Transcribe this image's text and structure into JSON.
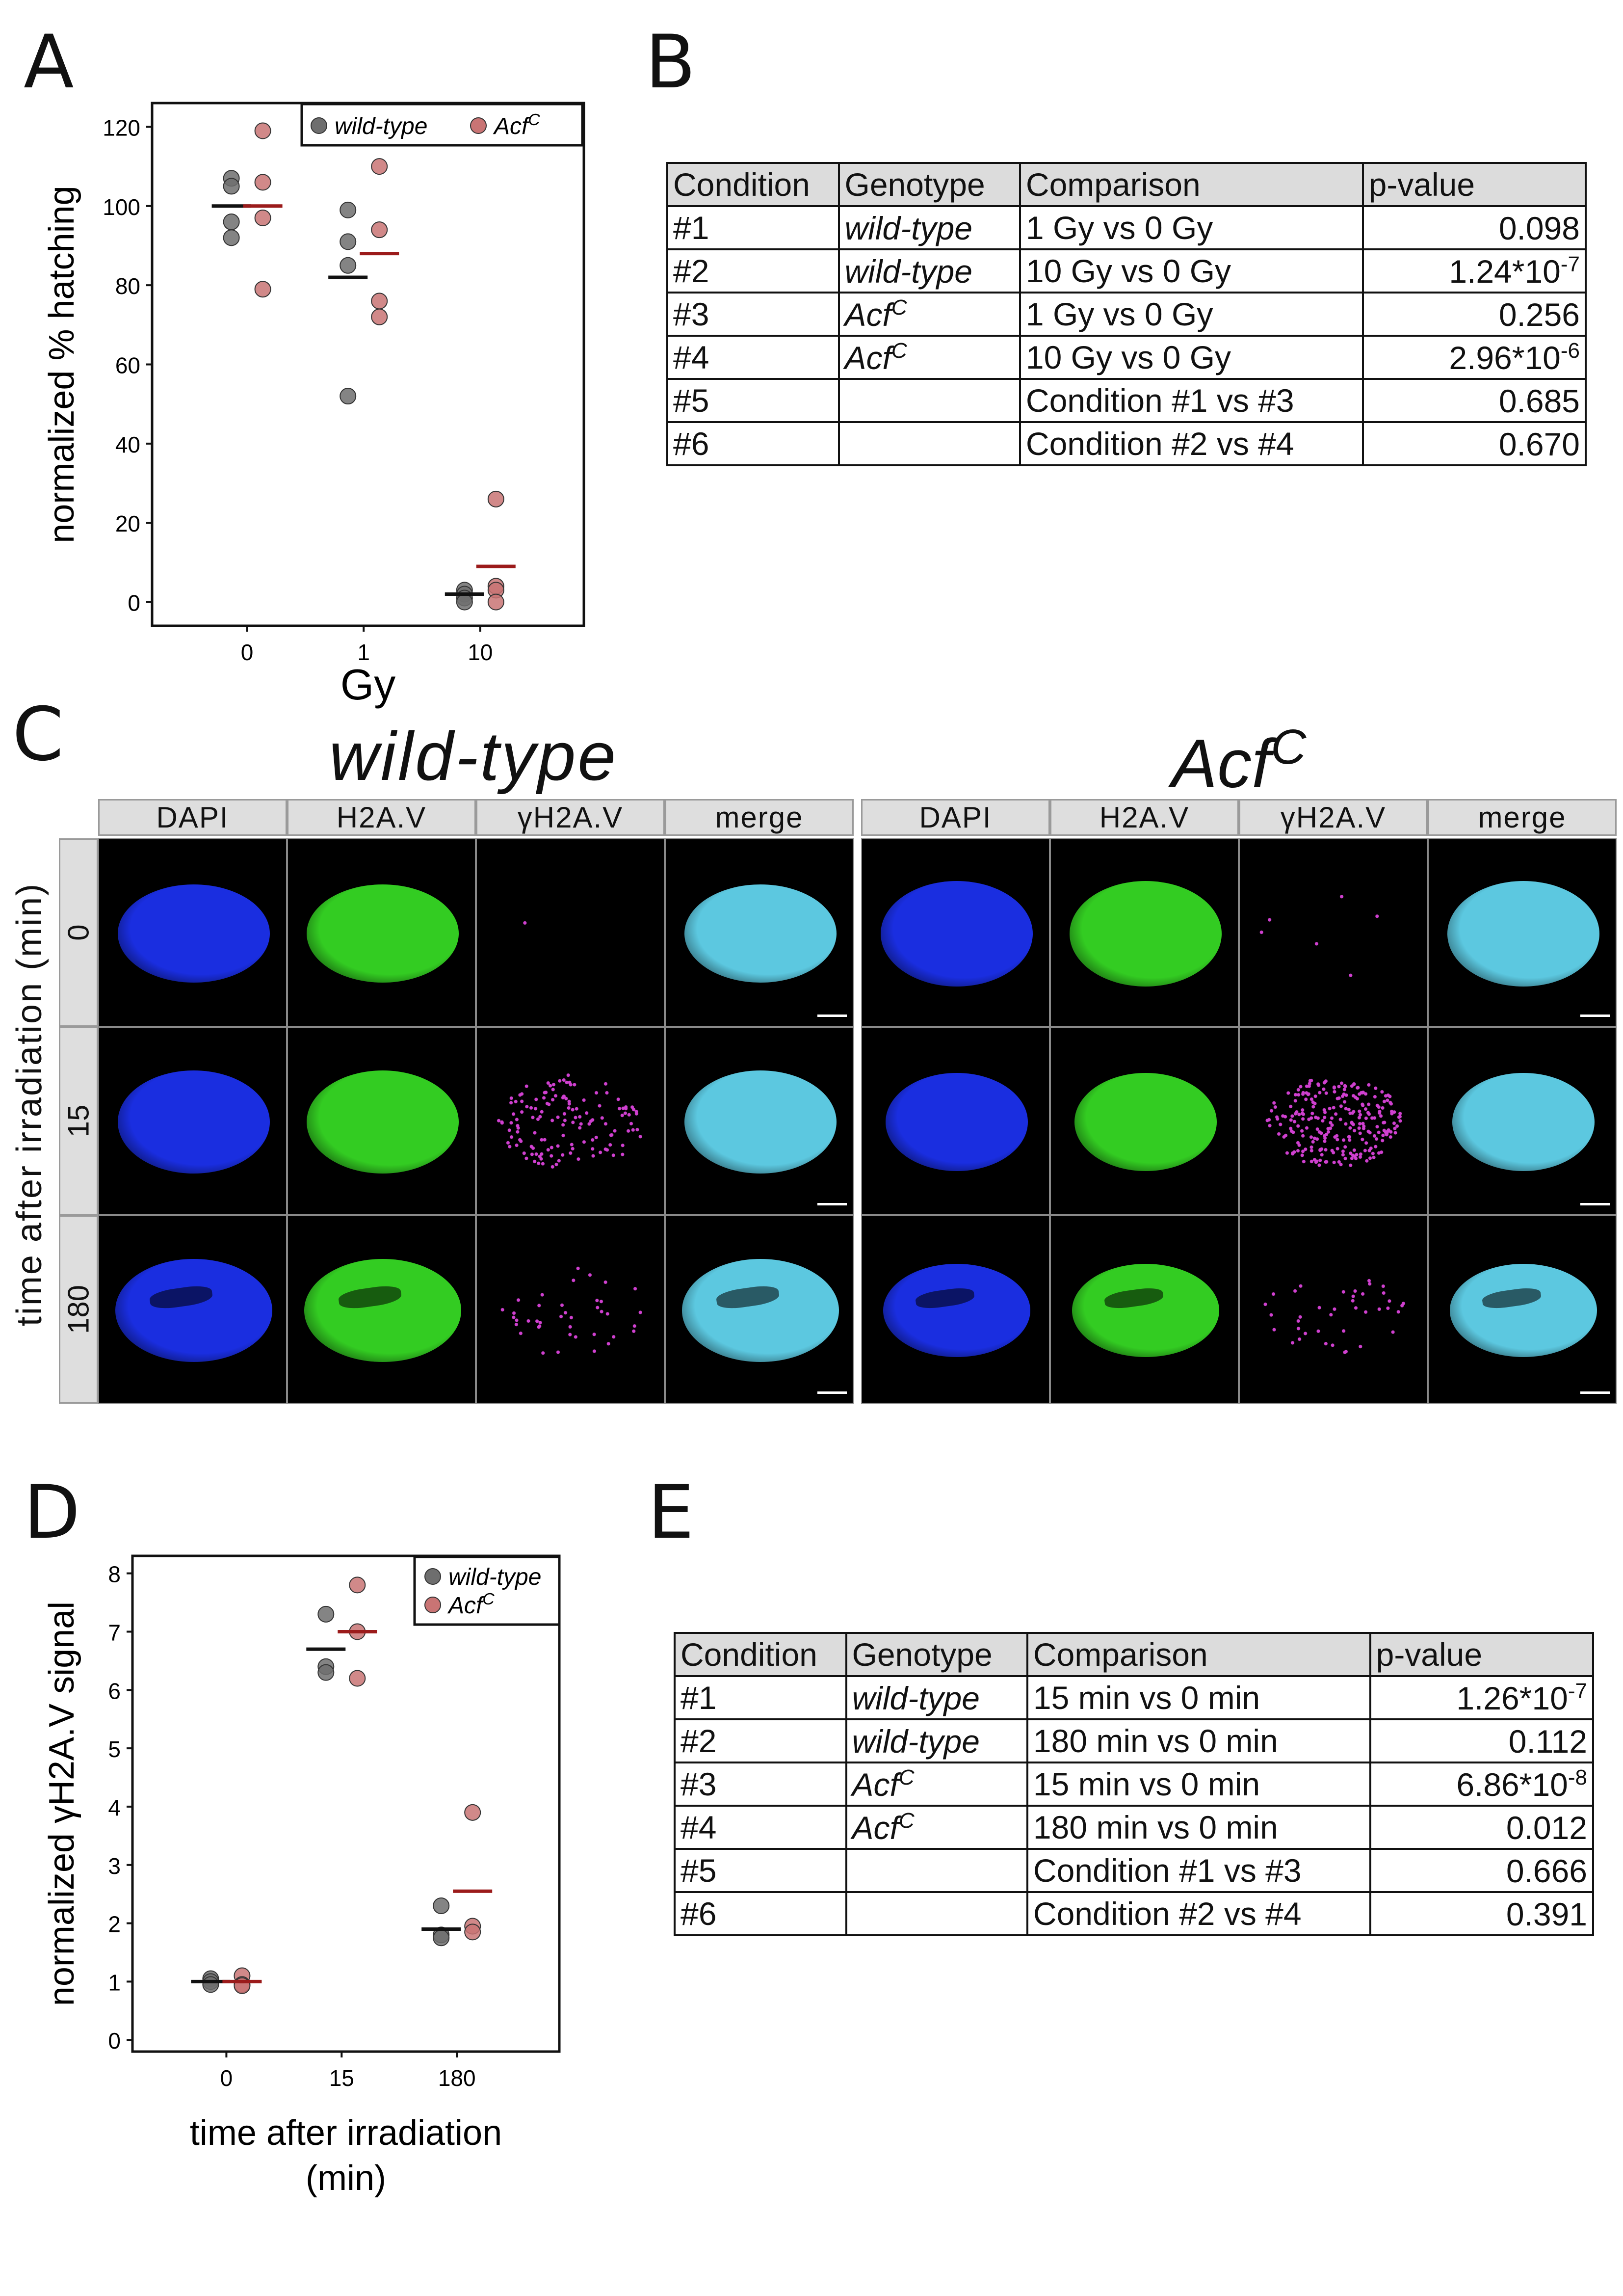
{
  "panels": {
    "a": "A",
    "b": "B",
    "c": "C",
    "d": "D",
    "e": "E"
  },
  "legend": {
    "wt": "wild-type",
    "acf": "Acf",
    "acf_sup": "C"
  },
  "colors": {
    "wt": "#6e6e6e",
    "acf": "#c97474",
    "wt_mean": "#111111",
    "acf_mean": "#9b1b1b",
    "dapi": "#1a2ee0",
    "h2av": "#33cc22",
    "gh2av": "#d040d0",
    "merge": "#5cc8e0"
  },
  "chart_data": [
    {
      "type": "scatter",
      "id": "A",
      "xlabel": "Gy",
      "ylabel": "normalized % hatching",
      "categories": [
        "0",
        "1",
        "10"
      ],
      "ylim": [
        -6,
        126
      ],
      "yticks": [
        0,
        20,
        40,
        60,
        80,
        100,
        120
      ],
      "legend": "top-right",
      "series": [
        {
          "name": "wild-type",
          "points": [
            [
              0,
              107
            ],
            [
              0,
              105
            ],
            [
              0,
              96
            ],
            [
              0,
              92
            ],
            [
              1,
              99
            ],
            [
              1,
              91
            ],
            [
              1,
              85
            ],
            [
              1,
              52
            ],
            [
              2,
              3
            ],
            [
              2,
              2
            ],
            [
              2,
              1
            ],
            [
              2,
              0
            ]
          ],
          "means": [
            100,
            82,
            2
          ]
        },
        {
          "name": "AcfC",
          "points": [
            [
              0,
              119
            ],
            [
              0,
              106
            ],
            [
              0,
              97
            ],
            [
              0,
              79
            ],
            [
              1,
              110
            ],
            [
              1,
              94
            ],
            [
              1,
              76
            ],
            [
              1,
              72
            ],
            [
              2,
              26
            ],
            [
              2,
              4
            ],
            [
              2,
              3
            ],
            [
              2,
              0
            ]
          ],
          "means": [
            100,
            88,
            9
          ]
        }
      ]
    },
    {
      "type": "scatter",
      "id": "D",
      "xlabel": "time after irradiation (min)",
      "ylabel": "normalized γH2A.V signal",
      "categories": [
        "0",
        "15",
        "180"
      ],
      "ylim": [
        -0.2,
        8.3
      ],
      "yticks": [
        0,
        1,
        2,
        3,
        4,
        5,
        6,
        7,
        8
      ],
      "legend": "top-right",
      "series": [
        {
          "name": "wild-type",
          "points": [
            [
              0,
              1.05
            ],
            [
              0,
              1.0
            ],
            [
              0,
              0.95
            ],
            [
              1,
              7.3
            ],
            [
              1,
              6.4
            ],
            [
              1,
              6.3
            ],
            [
              2,
              2.3
            ],
            [
              2,
              1.8
            ],
            [
              2,
              1.75
            ]
          ],
          "means": [
            1.0,
            6.7,
            1.9
          ]
        },
        {
          "name": "AcfC",
          "points": [
            [
              0,
              1.1
            ],
            [
              0,
              0.95
            ],
            [
              0,
              0.93
            ],
            [
              1,
              7.8
            ],
            [
              1,
              7.0
            ],
            [
              1,
              6.2
            ],
            [
              2,
              3.9
            ],
            [
              2,
              1.95
            ],
            [
              2,
              1.85
            ]
          ],
          "means": [
            1.0,
            7.0,
            2.55
          ]
        }
      ]
    }
  ],
  "table_b": {
    "headers": [
      "Condition",
      "Genotype",
      "Comparison",
      "p-value"
    ],
    "rows": [
      {
        "c": "#1",
        "g": "wild-type",
        "gs": "",
        "cmp": "1 Gy vs 0 Gy",
        "p": "0.098",
        "pe": ""
      },
      {
        "c": "#2",
        "g": "wild-type",
        "gs": "",
        "cmp": "10 Gy vs 0 Gy",
        "p": "1.24*10",
        "pe": "-7"
      },
      {
        "c": "#3",
        "g": "Acf",
        "gs": "C",
        "cmp": "1 Gy vs 0 Gy",
        "p": "0.256",
        "pe": ""
      },
      {
        "c": "#4",
        "g": "Acf",
        "gs": "C",
        "cmp": "10 Gy vs 0 Gy",
        "p": "2.96*10",
        "pe": "-6"
      },
      {
        "c": "#5",
        "g": "",
        "gs": "",
        "cmp": "Condition #1 vs #3",
        "p": "0.685",
        "pe": ""
      },
      {
        "c": "#6",
        "g": "",
        "gs": "",
        "cmp": "Condition #2 vs #4",
        "p": "0.670",
        "pe": ""
      }
    ]
  },
  "table_e": {
    "headers": [
      "Condition",
      "Genotype",
      "Comparison",
      "p-value"
    ],
    "rows": [
      {
        "c": "#1",
        "g": "wild-type",
        "gs": "",
        "cmp": "15 min vs 0 min",
        "p": "1.26*10",
        "pe": "-7"
      },
      {
        "c": "#2",
        "g": "wild-type",
        "gs": "",
        "cmp": "180 min vs 0 min",
        "p": "0.112",
        "pe": ""
      },
      {
        "c": "#3",
        "g": "Acf",
        "gs": "C",
        "cmp": "15 min vs 0 min",
        "p": "6.86*10",
        "pe": "-8"
      },
      {
        "c": "#4",
        "g": "Acf",
        "gs": "C",
        "cmp": "180 min vs 0 min",
        "p": "0.012",
        "pe": ""
      },
      {
        "c": "#5",
        "g": "",
        "gs": "",
        "cmp": "Condition #1 vs #3",
        "p": "0.666",
        "pe": ""
      },
      {
        "c": "#6",
        "g": "",
        "gs": "",
        "cmp": "Condition #2 vs #4",
        "p": "0.391",
        "pe": ""
      }
    ]
  },
  "micrograph": {
    "title_wt": "wild-type",
    "title_acf": "Acf",
    "title_acf_sup": "C",
    "channels": [
      "DAPI",
      "H2A.V",
      "γH2A.V",
      "merge"
    ],
    "row_axis_label": "time after irradiation (min)",
    "rows": [
      "0",
      "15",
      "180"
    ]
  }
}
